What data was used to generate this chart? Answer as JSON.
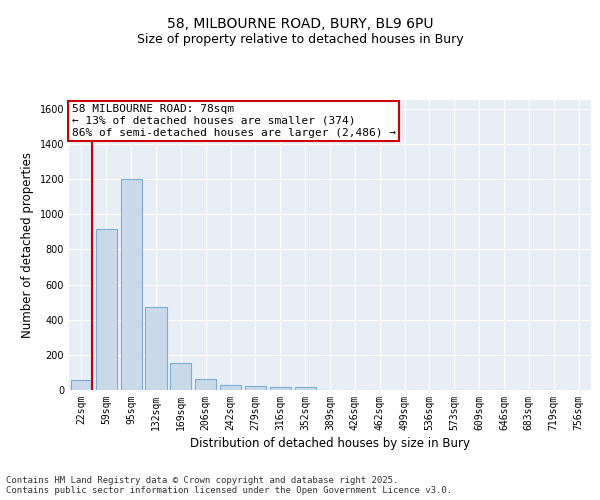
{
  "title_line1": "58, MILBOURNE ROAD, BURY, BL9 6PU",
  "title_line2": "Size of property relative to detached houses in Bury",
  "xlabel": "Distribution of detached houses by size in Bury",
  "ylabel": "Number of detached properties",
  "bin_labels": [
    "22sqm",
    "59sqm",
    "95sqm",
    "132sqm",
    "169sqm",
    "206sqm",
    "242sqm",
    "279sqm",
    "316sqm",
    "352sqm",
    "389sqm",
    "426sqm",
    "462sqm",
    "499sqm",
    "536sqm",
    "573sqm",
    "609sqm",
    "646sqm",
    "683sqm",
    "719sqm",
    "756sqm"
  ],
  "bar_values": [
    55,
    915,
    1200,
    470,
    155,
    60,
    30,
    20,
    15,
    15,
    0,
    0,
    0,
    0,
    0,
    0,
    0,
    0,
    0,
    0,
    0
  ],
  "bar_color": "#c9d9ea",
  "bar_edge_color": "#7aadd4",
  "vline_color": "#cc0000",
  "annotation_text": "58 MILBOURNE ROAD: 78sqm\n← 13% of detached houses are smaller (374)\n86% of semi-detached houses are larger (2,486) →",
  "annotation_box_color": "#ffffff",
  "annotation_box_edgecolor": "#cc0000",
  "ylim": [
    0,
    1650
  ],
  "yticks": [
    0,
    200,
    400,
    600,
    800,
    1000,
    1200,
    1400,
    1600
  ],
  "background_color": "#e8eef6",
  "grid_color": "#ffffff",
  "footer_text": "Contains HM Land Registry data © Crown copyright and database right 2025.\nContains public sector information licensed under the Open Government Licence v3.0.",
  "title_fontsize": 10,
  "subtitle_fontsize": 9,
  "axis_label_fontsize": 8.5,
  "tick_fontsize": 7,
  "annotation_fontsize": 8,
  "footer_fontsize": 6.5
}
